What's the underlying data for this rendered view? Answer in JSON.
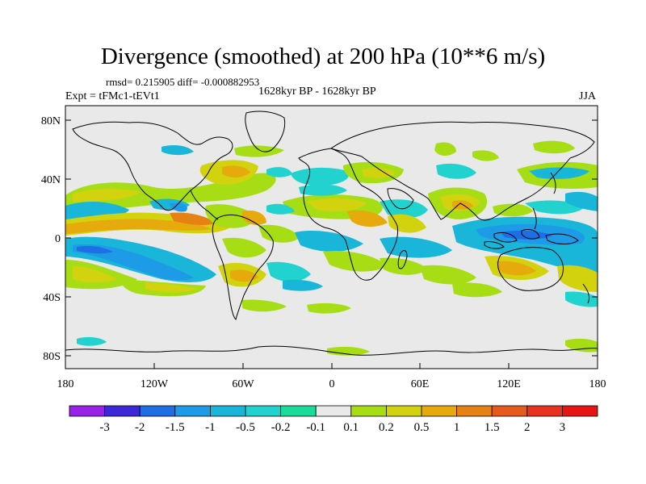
{
  "title": "Divergence (smoothed) at 200 hPa (10**6 m/s)",
  "stats": "rmsd= 0.215905  diff= -0.000882953",
  "experiment": "Expt = tFMc1-tEVt1",
  "period": "1628kyr BP - 1628kyr BP",
  "season": "JJA",
  "lat_labels": [
    "80N",
    "40N",
    "0",
    "40S",
    "80S"
  ],
  "lon_labels": [
    "180",
    "120W",
    "60W",
    "0",
    "60E",
    "120E",
    "180"
  ],
  "colorbar": {
    "labels": [
      "-3",
      "-2",
      "-1.5",
      "-1",
      "-0.5",
      "-0.2",
      "-0.1",
      "0.1",
      "0.2",
      "0.5",
      "1",
      "1.5",
      "2",
      "3"
    ],
    "colors": [
      "#9a22e6",
      "#3d28d8",
      "#1e6ee6",
      "#1e9be6",
      "#1ab6d9",
      "#21d2cf",
      "#19dc9a",
      "#e9e9e9",
      "#a6dd14",
      "#d2d20f",
      "#e6aa0c",
      "#e68214",
      "#e65a1e",
      "#e6321e",
      "#e61414"
    ]
  },
  "colors": {
    "ocean_background": "#e9e9e9",
    "coastline": "#000000"
  }
}
